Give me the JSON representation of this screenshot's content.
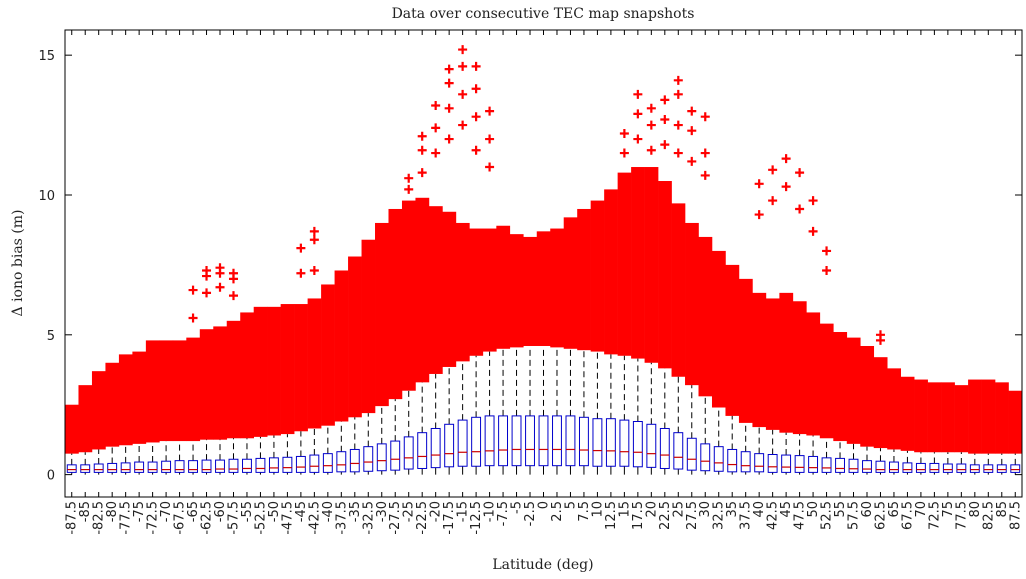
{
  "chart_data": {
    "type": "box",
    "title": "Data over consecutive TEC map snapshots",
    "x_label": "Latitude (deg)",
    "y_label": "Δ iono bias (m)",
    "categories": [
      "-87.5",
      "-85",
      "-82.5",
      "-80",
      "-77.5",
      "-75",
      "-72.5",
      "-70",
      "-67.5",
      "-65",
      "-62.5",
      "-60",
      "-57.5",
      "-55",
      "-52.5",
      "-50",
      "-47.5",
      "-45",
      "-42.5",
      "-40",
      "-37.5",
      "-35",
      "-32.5",
      "-30",
      "-27.5",
      "-25",
      "-22.5",
      "-20",
      "-17.5",
      "-15",
      "-12.5",
      "-10",
      "-7.5",
      "-5",
      "-2.5",
      "0",
      "2.5",
      "5",
      "7.5",
      "10",
      "12.5",
      "15",
      "17.5",
      "20",
      "22.5",
      "25",
      "27.5",
      "30",
      "32.5",
      "35",
      "37.5",
      "40",
      "42.5",
      "45",
      "47.5",
      "50",
      "52.5",
      "55",
      "57.5",
      "60",
      "62.5",
      "65",
      "67.5",
      "70",
      "72.5",
      "75",
      "77.5",
      "80",
      "82.5",
      "85",
      "87.5"
    ],
    "whisker_low": [
      0,
      0,
      0,
      0,
      0,
      0,
      0,
      0,
      0,
      0,
      0,
      0,
      0,
      0,
      0,
      0,
      0,
      0,
      0,
      0,
      0,
      0,
      0,
      0,
      0,
      0,
      0,
      0,
      0,
      0,
      0,
      0,
      0,
      0,
      0,
      0,
      0,
      0,
      0,
      0,
      0,
      0,
      0,
      0,
      0,
      0,
      0,
      0,
      0,
      0,
      0,
      0,
      0,
      0,
      0,
      0,
      0,
      0,
      0,
      0,
      0,
      0,
      0,
      0,
      0,
      0,
      0,
      0,
      0,
      0,
      0
    ],
    "q1": [
      0.08,
      0.08,
      0.08,
      0.08,
      0.08,
      0.08,
      0.08,
      0.08,
      0.08,
      0.08,
      0.08,
      0.08,
      0.08,
      0.08,
      0.08,
      0.08,
      0.08,
      0.08,
      0.08,
      0.08,
      0.1,
      0.1,
      0.12,
      0.14,
      0.16,
      0.2,
      0.22,
      0.25,
      0.28,
      0.3,
      0.3,
      0.32,
      0.32,
      0.32,
      0.32,
      0.32,
      0.32,
      0.32,
      0.32,
      0.3,
      0.3,
      0.3,
      0.28,
      0.26,
      0.22,
      0.2,
      0.16,
      0.14,
      0.12,
      0.1,
      0.1,
      0.1,
      0.08,
      0.08,
      0.08,
      0.08,
      0.08,
      0.08,
      0.08,
      0.08,
      0.08,
      0.08,
      0.08,
      0.08,
      0.08,
      0.08,
      0.08,
      0.08,
      0.08,
      0.08,
      0.08
    ],
    "median": [
      0.18,
      0.18,
      0.18,
      0.18,
      0.18,
      0.18,
      0.18,
      0.18,
      0.18,
      0.18,
      0.18,
      0.2,
      0.2,
      0.22,
      0.22,
      0.24,
      0.25,
      0.27,
      0.3,
      0.32,
      0.35,
      0.4,
      0.45,
      0.5,
      0.55,
      0.6,
      0.65,
      0.7,
      0.75,
      0.8,
      0.82,
      0.85,
      0.88,
      0.9,
      0.9,
      0.9,
      0.9,
      0.9,
      0.88,
      0.86,
      0.85,
      0.82,
      0.8,
      0.75,
      0.7,
      0.62,
      0.55,
      0.48,
      0.42,
      0.36,
      0.32,
      0.3,
      0.28,
      0.27,
      0.26,
      0.25,
      0.24,
      0.22,
      0.21,
      0.2,
      0.18,
      0.18,
      0.18,
      0.18,
      0.18,
      0.18,
      0.18,
      0.18,
      0.18,
      0.18,
      0.18
    ],
    "q3": [
      0.35,
      0.35,
      0.38,
      0.4,
      0.42,
      0.45,
      0.45,
      0.48,
      0.5,
      0.5,
      0.52,
      0.52,
      0.55,
      0.55,
      0.58,
      0.6,
      0.62,
      0.65,
      0.7,
      0.75,
      0.82,
      0.9,
      1.0,
      1.1,
      1.2,
      1.35,
      1.5,
      1.65,
      1.8,
      1.95,
      2.05,
      2.1,
      2.1,
      2.1,
      2.1,
      2.1,
      2.1,
      2.1,
      2.05,
      2.0,
      2.0,
      1.95,
      1.9,
      1.8,
      1.65,
      1.5,
      1.3,
      1.1,
      1.0,
      0.9,
      0.82,
      0.75,
      0.72,
      0.7,
      0.68,
      0.65,
      0.6,
      0.58,
      0.55,
      0.5,
      0.48,
      0.45,
      0.42,
      0.4,
      0.4,
      0.38,
      0.38,
      0.35,
      0.35,
      0.35,
      0.35
    ],
    "whisker_high": [
      0.75,
      0.8,
      0.9,
      1.0,
      1.05,
      1.1,
      1.15,
      1.2,
      1.2,
      1.2,
      1.25,
      1.25,
      1.3,
      1.3,
      1.35,
      1.4,
      1.45,
      1.55,
      1.65,
      1.75,
      1.9,
      2.05,
      2.2,
      2.45,
      2.7,
      3.0,
      3.3,
      3.6,
      3.85,
      4.05,
      4.25,
      4.4,
      4.5,
      4.55,
      4.6,
      4.6,
      4.55,
      4.5,
      4.45,
      4.4,
      4.3,
      4.25,
      4.15,
      4.0,
      3.8,
      3.5,
      3.2,
      2.8,
      2.4,
      2.1,
      1.85,
      1.7,
      1.6,
      1.5,
      1.45,
      1.4,
      1.3,
      1.2,
      1.1,
      1.0,
      0.95,
      0.9,
      0.85,
      0.8,
      0.8,
      0.8,
      0.8,
      0.75,
      0.75,
      0.75,
      0.75
    ],
    "outlier_max": [
      2.5,
      3.2,
      3.7,
      4.0,
      4.3,
      4.4,
      4.8,
      4.8,
      4.8,
      4.9,
      5.2,
      5.3,
      5.5,
      5.8,
      6.0,
      6.0,
      6.1,
      6.1,
      6.3,
      6.8,
      7.3,
      7.8,
      8.4,
      9.0,
      9.5,
      9.8,
      9.9,
      9.6,
      9.4,
      9.0,
      8.8,
      8.8,
      8.9,
      8.6,
      8.5,
      8.7,
      8.8,
      9.2,
      9.5,
      9.8,
      10.2,
      10.8,
      11.0,
      11.0,
      10.5,
      9.7,
      9.0,
      8.5,
      8.0,
      7.5,
      7.0,
      6.5,
      6.3,
      6.5,
      6.2,
      5.8,
      5.4,
      5.1,
      4.9,
      4.6,
      4.2,
      3.8,
      3.5,
      3.4,
      3.3,
      3.3,
      3.2,
      3.4,
      3.4,
      3.3,
      3.0
    ],
    "outliers": [
      [],
      [],
      [],
      [],
      [],
      [],
      [],
      [],
      [],
      [
        5.6,
        6.6
      ],
      [
        6.5,
        7.1,
        7.3
      ],
      [
        6.7,
        7.2,
        7.4
      ],
      [
        6.4,
        7.0,
        7.2
      ],
      [],
      [],
      [],
      [],
      [
        7.2,
        8.1
      ],
      [
        7.3,
        8.4,
        8.7
      ],
      [],
      [],
      [],
      [],
      [],
      [],
      [
        10.2,
        10.6
      ],
      [
        10.8,
        11.6,
        12.1
      ],
      [
        11.5,
        12.4,
        13.2
      ],
      [
        12.0,
        13.1,
        14.0,
        14.5
      ],
      [
        12.5,
        13.6,
        14.6,
        15.2
      ],
      [
        11.6,
        12.8,
        13.8,
        14.6
      ],
      [
        11.0,
        12.0,
        13.0
      ],
      [],
      [],
      [],
      [],
      [],
      [],
      [],
      [],
      [],
      [
        11.5,
        12.2
      ],
      [
        12.0,
        12.9,
        13.6
      ],
      [
        11.6,
        12.5,
        13.1
      ],
      [
        11.8,
        12.7,
        13.4
      ],
      [
        11.5,
        12.5,
        13.6,
        14.1
      ],
      [
        11.2,
        12.3,
        13.0
      ],
      [
        10.7,
        11.5,
        12.8
      ],
      [],
      [],
      [],
      [
        9.3,
        10.4
      ],
      [
        9.8,
        10.9
      ],
      [
        10.3,
        11.3
      ],
      [
        9.5,
        10.8
      ],
      [
        8.7,
        9.8
      ],
      [
        7.3,
        8.0
      ],
      [],
      [],
      [],
      [
        4.8,
        5.0
      ],
      [],
      [],
      [],
      [],
      [],
      [],
      [],
      [],
      [],
      []
    ],
    "box_color": "#0000cc",
    "median_color": "#cc0000",
    "whisker_color": "#000000",
    "outlier_color": "#ff0000",
    "ylim": [
      -0.8,
      15.9
    ],
    "yticks": [
      0,
      5,
      10,
      15
    ]
  }
}
